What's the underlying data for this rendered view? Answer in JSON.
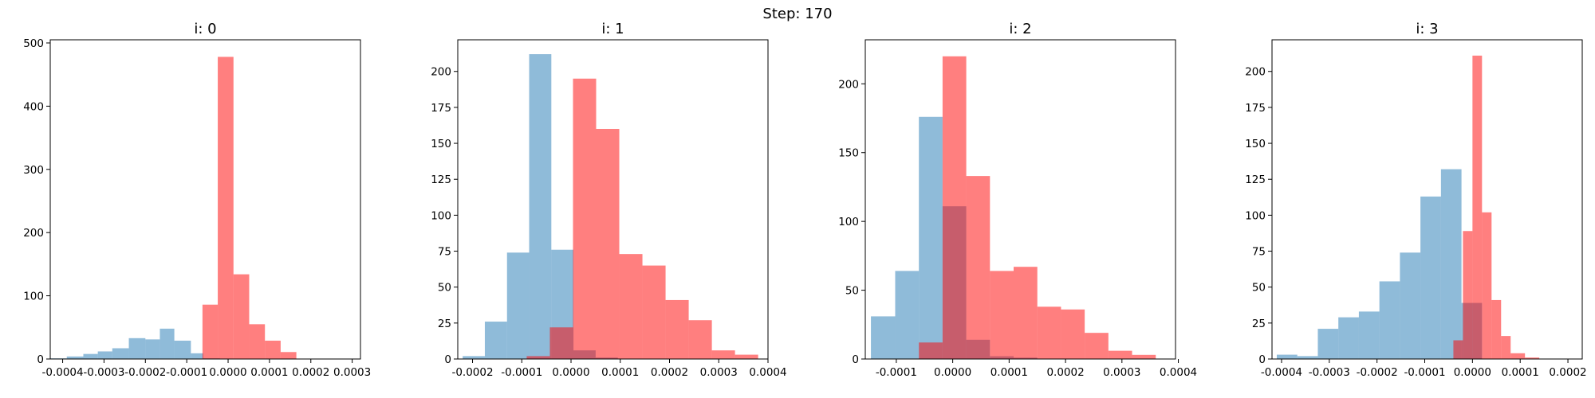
{
  "figure": {
    "title": "Step: 170"
  },
  "colors": {
    "blue": "#1f77b4",
    "red": "#ff0000",
    "alpha": 0.5
  },
  "chart_data": [
    {
      "type": "bar",
      "title": "i: 0",
      "xlim": [
        -0.00043,
        0.00032
      ],
      "ylim": [
        0,
        505
      ],
      "xticks": [
        "-0.0004",
        "-0.0003",
        "-0.0002",
        "-0.0001",
        "0.0000",
        "0.0001",
        "0.0002",
        "0.0003"
      ],
      "xtick_values": [
        -0.0004,
        -0.0003,
        -0.0002,
        -0.0001,
        0.0,
        0.0001,
        0.0002,
        0.0003
      ],
      "yticks": [
        0,
        100,
        200,
        300,
        400,
        500
      ],
      "series": [
        {
          "color": "blue",
          "edges": [
            -0.00043,
            -0.00039,
            -0.00035,
            -0.000315,
            -0.00028,
            -0.00024,
            -0.0002,
            -0.000165,
            -0.00013,
            -9e-05,
            -6e-05,
            -2e-05
          ],
          "values": [
            1,
            4,
            8,
            12,
            17,
            33,
            31,
            48,
            29,
            9,
            1
          ]
        },
        {
          "color": "red",
          "edges": [
            -6.2e-05,
            -2.5e-05,
            1.3e-05,
            5.1e-05,
            8.9e-05,
            0.000127,
            0.000165,
            0.000203,
            0.000241,
            0.000279,
            0.00031
          ],
          "values": [
            86,
            478,
            134,
            55,
            29,
            11,
            0,
            0,
            0,
            0
          ]
        }
      ]
    },
    {
      "type": "bar",
      "title": "i: 1",
      "xlim": [
        -0.00023,
        0.0004
      ],
      "ylim": [
        0,
        222
      ],
      "xticks": [
        "-0.0002",
        "-0.0001",
        "0.0000",
        "0.0001",
        "0.0002",
        "0.0003",
        "0.0004"
      ],
      "xtick_values": [
        -0.0002,
        -0.0001,
        0.0,
        0.0001,
        0.0002,
        0.0003,
        0.0004
      ],
      "yticks": [
        0,
        25,
        50,
        75,
        100,
        125,
        150,
        175,
        200
      ],
      "series": [
        {
          "color": "blue",
          "edges": [
            -0.00022,
            -0.000175,
            -0.00013,
            -8.5e-05,
            -4e-05,
            5e-06,
            5e-05,
            9.5e-05,
            0.00014,
            0.000185,
            0.00023
          ],
          "values": [
            2,
            26,
            74,
            212,
            76,
            6,
            1,
            0,
            0,
            0
          ]
        },
        {
          "color": "red",
          "edges": [
            -9e-05,
            -4.3e-05,
            4e-06,
            5.1e-05,
            9.8e-05,
            0.000145,
            0.000192,
            0.000239,
            0.000286,
            0.000333,
            0.00038
          ],
          "values": [
            2,
            22,
            195,
            160,
            73,
            65,
            41,
            27,
            6,
            3
          ]
        }
      ]
    },
    {
      "type": "bar",
      "title": "i: 2",
      "xlim": [
        -0.000155,
        0.000395
      ],
      "ylim": [
        0,
        232
      ],
      "xticks": [
        "-0.0001",
        "0.0000",
        "0.0001",
        "0.0002",
        "0.0003",
        "0.0004"
      ],
      "xtick_values": [
        -0.0001,
        0.0,
        0.0001,
        0.0002,
        0.0003,
        0.0004
      ],
      "yticks": [
        0,
        50,
        100,
        150,
        200
      ],
      "series": [
        {
          "color": "blue",
          "edges": [
            -0.000145,
            -0.000102,
            -6e-05,
            -1.8e-05,
            2.4e-05,
            6.6e-05,
            0.000108,
            0.00015,
            0.000192,
            0.000234,
            0.000276
          ],
          "values": [
            31,
            64,
            176,
            111,
            14,
            2,
            1,
            0,
            0,
            0
          ]
        },
        {
          "color": "red",
          "edges": [
            -6e-05,
            -1.8e-05,
            2.4e-05,
            6.6e-05,
            0.000108,
            0.00015,
            0.000192,
            0.000234,
            0.000276,
            0.000318,
            0.00036
          ],
          "values": [
            12,
            220,
            133,
            64,
            67,
            38,
            36,
            19,
            6,
            3
          ]
        }
      ]
    },
    {
      "type": "bar",
      "title": "i: 3",
      "xlim": [
        -0.00042,
        0.00023
      ],
      "ylim": [
        0,
        222
      ],
      "xticks": [
        "-0.0004",
        "-0.0003",
        "-0.0002",
        "-0.0001",
        "0.0000",
        "0.0001",
        "0.0002"
      ],
      "xtick_values": [
        -0.0004,
        -0.0003,
        -0.0002,
        -0.0001,
        0.0,
        0.0001,
        0.0002
      ],
      "yticks": [
        0,
        25,
        50,
        75,
        100,
        125,
        150,
        175,
        200
      ],
      "series": [
        {
          "color": "blue",
          "edges": [
            -0.00041,
            -0.000367,
            -0.000324,
            -0.000281,
            -0.000238,
            -0.000195,
            -0.000152,
            -0.000109,
            -6.6e-05,
            -2.3e-05,
            2e-05
          ],
          "values": [
            3,
            2,
            21,
            29,
            33,
            54,
            74,
            113,
            132,
            39
          ]
        },
        {
          "color": "red",
          "edges": [
            -4e-05,
            -2e-05,
            0.0,
            2e-05,
            4e-05,
            6e-05,
            8e-05,
            0.00011,
            0.00014,
            0.00017,
            0.0002
          ],
          "values": [
            13,
            89,
            211,
            102,
            41,
            16,
            4,
            1,
            0,
            0
          ]
        }
      ]
    }
  ]
}
